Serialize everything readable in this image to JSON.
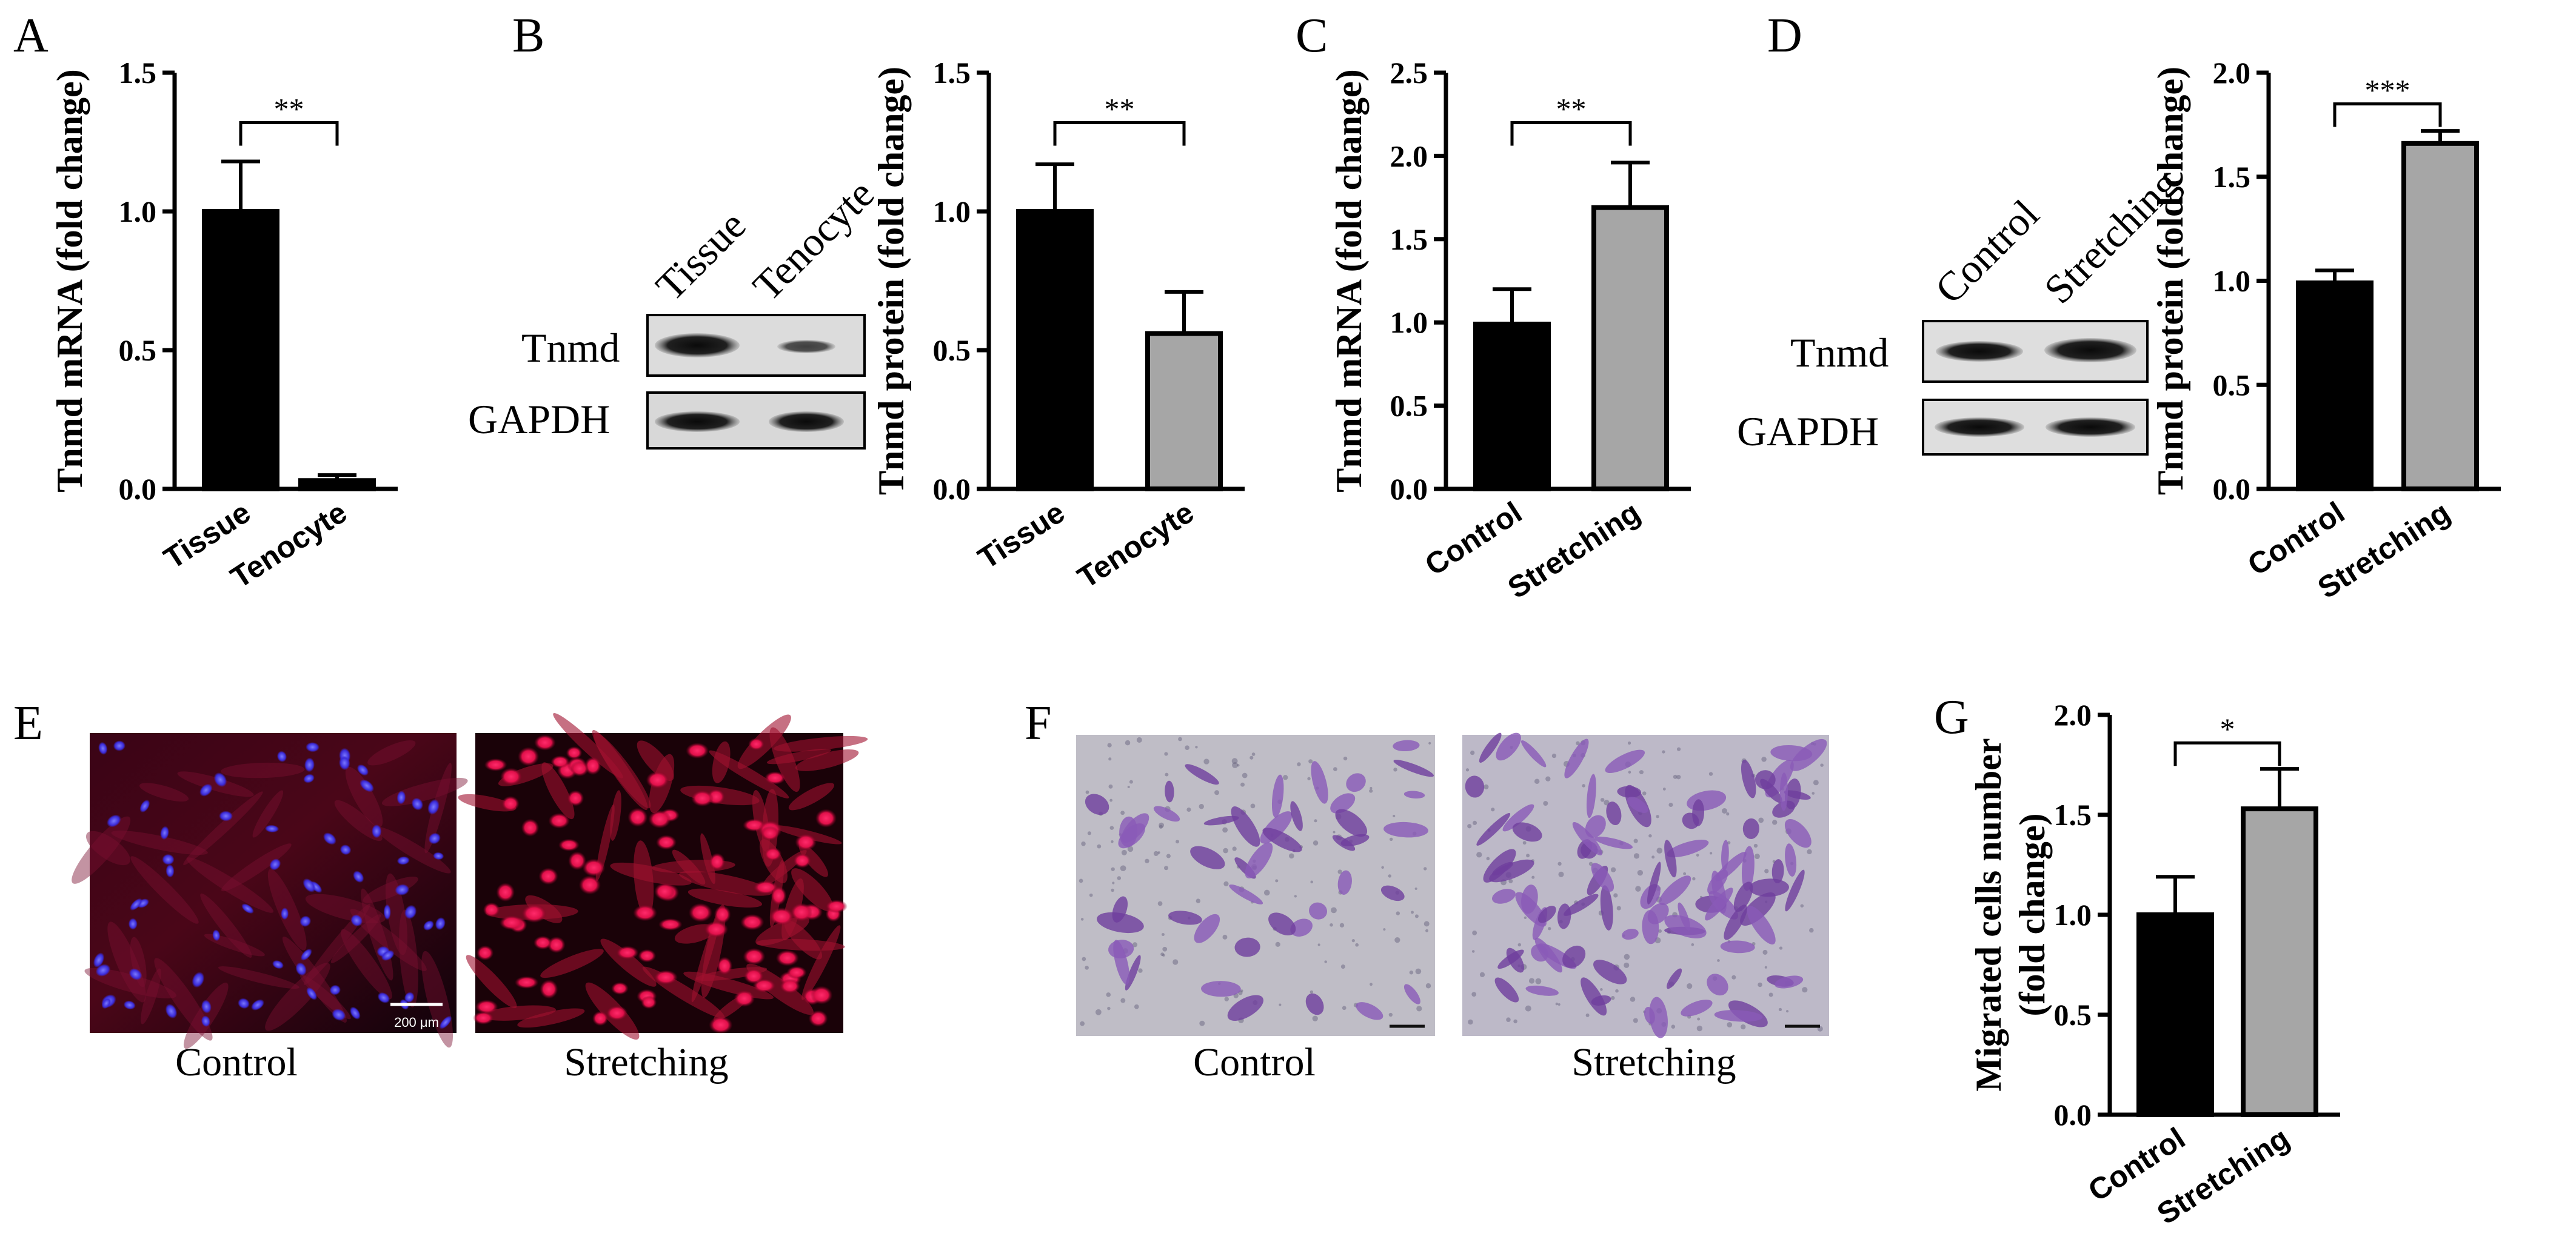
{
  "panel_letters": [
    "A",
    "B",
    "C",
    "D",
    "E",
    "F",
    "G"
  ],
  "colors": {
    "ctrl": "#000000",
    "treat": "#a6a6a6"
  },
  "chart_data": [
    {
      "id": "A",
      "type": "bar",
      "categories": [
        "Tissue",
        "Tenocyte"
      ],
      "values": [
        1.0,
        0.03
      ],
      "errors": [
        0.18,
        0.02
      ],
      "ylabel": "Tnmd mRNA (fold change)",
      "ylim": [
        0,
        1.5
      ],
      "yticks": [
        0.0,
        0.5,
        1.0,
        1.5
      ],
      "tick_labels": [
        "0.0",
        "0.5",
        "1.0",
        "1.5"
      ],
      "significance": "**",
      "sig_y": 1.32,
      "bar_colors": [
        "#000000",
        "#000000"
      ]
    },
    {
      "id": "B",
      "type": "bar",
      "categories": [
        "Tissue",
        "Tenocyte"
      ],
      "values": [
        1.0,
        0.56
      ],
      "errors": [
        0.17,
        0.15
      ],
      "ylabel": "Tnmd protein (fold change)",
      "ylim": [
        0,
        1.5
      ],
      "yticks": [
        0.0,
        0.5,
        1.0,
        1.5
      ],
      "tick_labels": [
        "0.0",
        "0.5",
        "1.0",
        "1.5"
      ],
      "significance": "**",
      "sig_y": 1.32,
      "bar_colors": [
        "#000000",
        "#a6a6a6"
      ]
    },
    {
      "id": "C",
      "type": "bar",
      "categories": [
        "Control",
        "Stretching"
      ],
      "values": [
        0.99,
        1.69
      ],
      "errors": [
        0.21,
        0.27
      ],
      "ylabel": "Tnmd mRNA (fold change)",
      "ylim": [
        0,
        2.5
      ],
      "yticks": [
        0.0,
        0.5,
        1.0,
        1.5,
        2.0,
        2.5
      ],
      "tick_labels": [
        "0.0",
        "0.5",
        "1.0",
        "1.5",
        "2.0",
        "2.5"
      ],
      "significance": "**",
      "sig_y": 2.2,
      "bar_colors": [
        "#000000",
        "#a6a6a6"
      ]
    },
    {
      "id": "D",
      "type": "bar",
      "categories": [
        "Control",
        "Stretching"
      ],
      "values": [
        0.99,
        1.66
      ],
      "errors": [
        0.06,
        0.06
      ],
      "ylabel": "Tnmd protein (fold change)",
      "ylim": [
        0,
        2.0
      ],
      "yticks": [
        0.0,
        0.5,
        1.0,
        1.5,
        2.0
      ],
      "tick_labels": [
        "0.0",
        "0.5",
        "1.0",
        "1.5",
        "2.0"
      ],
      "significance": "***",
      "sig_y": 1.85,
      "bar_colors": [
        "#000000",
        "#a6a6a6"
      ]
    },
    {
      "id": "G",
      "type": "bar",
      "categories": [
        "Control",
        "Stretching"
      ],
      "values": [
        1.0,
        1.53
      ],
      "errors": [
        0.19,
        0.2
      ],
      "ylabel": "Migrated cells number",
      "ylabel2": "(fold change)",
      "ylim": [
        0,
        2.0
      ],
      "yticks": [
        0.0,
        0.5,
        1.0,
        1.5,
        2.0
      ],
      "tick_labels": [
        "0.0",
        "0.5",
        "1.0",
        "1.5",
        "2.0"
      ],
      "significance": "*",
      "sig_y": 1.86,
      "bar_colors": [
        "#000000",
        "#a6a6a6"
      ]
    }
  ],
  "blots": {
    "B": {
      "lanes": [
        "Tissue",
        "Tenocyte"
      ],
      "rows": [
        "Tnmd",
        "GAPDH"
      ]
    },
    "D": {
      "lanes": [
        "Control",
        "Stretching"
      ],
      "rows": [
        "Tnmd",
        "GAPDH"
      ]
    }
  },
  "images": {
    "E": {
      "captions": [
        "Control",
        "Stretching"
      ],
      "scale_bar": "200 μm"
    },
    "F": {
      "captions": [
        "Control",
        "Stretching"
      ]
    }
  }
}
